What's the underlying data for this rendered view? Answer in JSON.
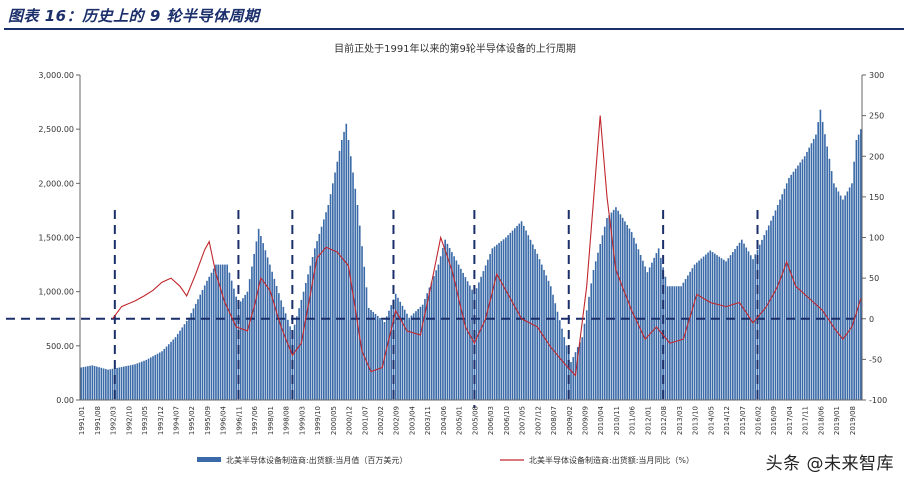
{
  "header": {
    "title": "图表 16：历史上的 9 轮半导体周期"
  },
  "watermark": "头条 @未来智库",
  "colors": {
    "bar": "#3a6aa8",
    "line": "#c0272d",
    "cycle_marker": "#1b2f6b",
    "title": "#1b2f6b"
  },
  "chart_data": {
    "type": "bar",
    "title": "目前正处于1991年以来的第9轮半导体设备的上行周期",
    "xlabel": "",
    "ylabel": "",
    "y_left": {
      "range": [
        0,
        3000
      ],
      "ticks": [
        "0.00",
        "500.00",
        "1,000.00",
        "1,500.00",
        "2,000.00",
        "2,500.00",
        "3,000.00"
      ]
    },
    "y_right": {
      "range": [
        -100,
        300
      ],
      "ticks": [
        "-100",
        "-50",
        "0",
        "50",
        "100",
        "150",
        "200",
        "250",
        "300"
      ]
    },
    "x_tick_labels": [
      "1991/01",
      "1991/08",
      "1992/03",
      "1992/10",
      "1993/05",
      "1993/12",
      "1994/07",
      "1995/02",
      "1995/09",
      "1996/04",
      "1996/11",
      "1997/06",
      "1998/01",
      "1998/08",
      "1999/03",
      "1999/10",
      "2000/05",
      "2000/12",
      "2001/07",
      "2002/02",
      "2002/09",
      "2003/04",
      "2003/11",
      "2004/06",
      "2005/01",
      "2005/08",
      "2006/03",
      "2006/10",
      "2007/05",
      "2007/12",
      "2008/07",
      "2009/02",
      "2009/09",
      "2010/04",
      "2010/11",
      "2011/06",
      "2012/01",
      "2012/08",
      "2013/03",
      "2013/10",
      "2014/05",
      "2014/12",
      "2015/07",
      "2016/02",
      "2016/09",
      "2017/04",
      "2017/11",
      "2018/06",
      "2019/01",
      "2019/08"
    ],
    "x_start": "1991/01",
    "x_end": "2019/12",
    "bar_anchors": [
      [
        "1991/01",
        300
      ],
      [
        "1991/06",
        320
      ],
      [
        "1992/01",
        280
      ],
      [
        "1992/06",
        300
      ],
      [
        "1993/01",
        330
      ],
      [
        "1993/06",
        370
      ],
      [
        "1994/01",
        450
      ],
      [
        "1994/07",
        580
      ],
      [
        "1995/01",
        760
      ],
      [
        "1995/09",
        1100
      ],
      [
        "1996/01",
        1250
      ],
      [
        "1996/06",
        1250
      ],
      [
        "1996/11",
        880
      ],
      [
        "1997/03",
        1000
      ],
      [
        "1997/08",
        1580
      ],
      [
        "1998/01",
        1250
      ],
      [
        "1998/06",
        920
      ],
      [
        "1998/11",
        620
      ],
      [
        "1999/04",
        1000
      ],
      [
        "1999/09",
        1400
      ],
      [
        "2000/03",
        1800
      ],
      [
        "2000/09",
        2400
      ],
      [
        "2000/11",
        2550
      ],
      [
        "2001/04",
        1800
      ],
      [
        "2001/09",
        850
      ],
      [
        "2002/04",
        720
      ],
      [
        "2002/09",
        980
      ],
      [
        "2003/03",
        760
      ],
      [
        "2003/09",
        880
      ],
      [
        "2004/04",
        1250
      ],
      [
        "2004/07",
        1480
      ],
      [
        "2005/01",
        1250
      ],
      [
        "2005/08",
        980
      ],
      [
        "2006/04",
        1400
      ],
      [
        "2006/10",
        1500
      ],
      [
        "2007/05",
        1650
      ],
      [
        "2007/12",
        1350
      ],
      [
        "2008/06",
        1050
      ],
      [
        "2008/12",
        580
      ],
      [
        "2009/03",
        350
      ],
      [
        "2009/08",
        580
      ],
      [
        "2010/01",
        1200
      ],
      [
        "2010/07",
        1680
      ],
      [
        "2010/11",
        1780
      ],
      [
        "2011/06",
        1550
      ],
      [
        "2012/01",
        1180
      ],
      [
        "2012/06",
        1400
      ],
      [
        "2012/10",
        1050
      ],
      [
        "2013/04",
        1050
      ],
      [
        "2013/10",
        1250
      ],
      [
        "2014/05",
        1380
      ],
      [
        "2014/12",
        1280
      ],
      [
        "2015/07",
        1480
      ],
      [
        "2015/12",
        1300
      ],
      [
        "2016/09",
        1700
      ],
      [
        "2017/04",
        2050
      ],
      [
        "2017/11",
        2250
      ],
      [
        "2018/04",
        2450
      ],
      [
        "2018/06",
        2680
      ],
      [
        "2018/12",
        2000
      ],
      [
        "2019/04",
        1850
      ],
      [
        "2019/08",
        2000
      ],
      [
        "2019/10",
        2400
      ],
      [
        "2019/12",
        2500
      ]
    ],
    "series": [
      {
        "name": "北美半导体设备制造商:出货额:当月值（百万美元）",
        "axis": "left",
        "kind": "bar"
      },
      {
        "name": "北美半导体设备制造商:出货额:当月同比（%）",
        "axis": "right",
        "kind": "line",
        "points": [
          [
            "1992/03",
            0
          ],
          [
            "1992/07",
            15
          ],
          [
            "1993/01",
            22
          ],
          [
            "1993/05",
            28
          ],
          [
            "1993/09",
            35
          ],
          [
            "1994/01",
            45
          ],
          [
            "1994/05",
            50
          ],
          [
            "1994/09",
            40
          ],
          [
            "1994/12",
            28
          ],
          [
            "1995/04",
            55
          ],
          [
            "1995/08",
            85
          ],
          [
            "1995/10",
            95
          ],
          [
            "1996/01",
            55
          ],
          [
            "1996/05",
            20
          ],
          [
            "1996/10",
            -10
          ],
          [
            "1997/03",
            -15
          ],
          [
            "1997/06",
            15
          ],
          [
            "1997/09",
            50
          ],
          [
            "1998/01",
            35
          ],
          [
            "1998/06",
            -10
          ],
          [
            "1998/11",
            -45
          ],
          [
            "1999/03",
            -30
          ],
          [
            "1999/07",
            30
          ],
          [
            "1999/10",
            75
          ],
          [
            "2000/02",
            88
          ],
          [
            "2000/07",
            82
          ],
          [
            "2000/12",
            65
          ],
          [
            "2001/06",
            -40
          ],
          [
            "2001/10",
            -65
          ],
          [
            "2002/03",
            -60
          ],
          [
            "2002/09",
            10
          ],
          [
            "2003/02",
            -15
          ],
          [
            "2003/08",
            -20
          ],
          [
            "2004/01",
            45
          ],
          [
            "2004/05",
            100
          ],
          [
            "2004/10",
            60
          ],
          [
            "2005/04",
            -10
          ],
          [
            "2005/08",
            -30
          ],
          [
            "2006/01",
            0
          ],
          [
            "2006/06",
            55
          ],
          [
            "2006/11",
            30
          ],
          [
            "2007/05",
            0
          ],
          [
            "2007/12",
            -10
          ],
          [
            "2008/06",
            -35
          ],
          [
            "2008/12",
            -55
          ],
          [
            "2009/05",
            -70
          ],
          [
            "2009/10",
            40
          ],
          [
            "2010/02",
            180
          ],
          [
            "2010/04",
            250
          ],
          [
            "2010/07",
            150
          ],
          [
            "2010/11",
            60
          ],
          [
            "2011/06",
            10
          ],
          [
            "2011/12",
            -25
          ],
          [
            "2012/05",
            -10
          ],
          [
            "2012/11",
            -30
          ],
          [
            "2013/05",
            -25
          ],
          [
            "2013/11",
            30
          ],
          [
            "2014/05",
            20
          ],
          [
            "2014/12",
            15
          ],
          [
            "2015/06",
            20
          ],
          [
            "2015/12",
            -5
          ],
          [
            "2016/06",
            15
          ],
          [
            "2016/11",
            40
          ],
          [
            "2017/03",
            70
          ],
          [
            "2017/07",
            40
          ],
          [
            "2018/01",
            25
          ],
          [
            "2018/07",
            10
          ],
          [
            "2019/01",
            -15
          ],
          [
            "2019/04",
            -25
          ],
          [
            "2019/08",
            -10
          ],
          [
            "2019/12",
            25
          ]
        ]
      }
    ],
    "zero_reference_right": 0,
    "cycle_markers": [
      "1992/04",
      "1996/11",
      "1998/11",
      "2002/08",
      "2005/08",
      "2009/02",
      "2012/08",
      "2016/02"
    ],
    "grid": false,
    "legend": "bottom"
  }
}
